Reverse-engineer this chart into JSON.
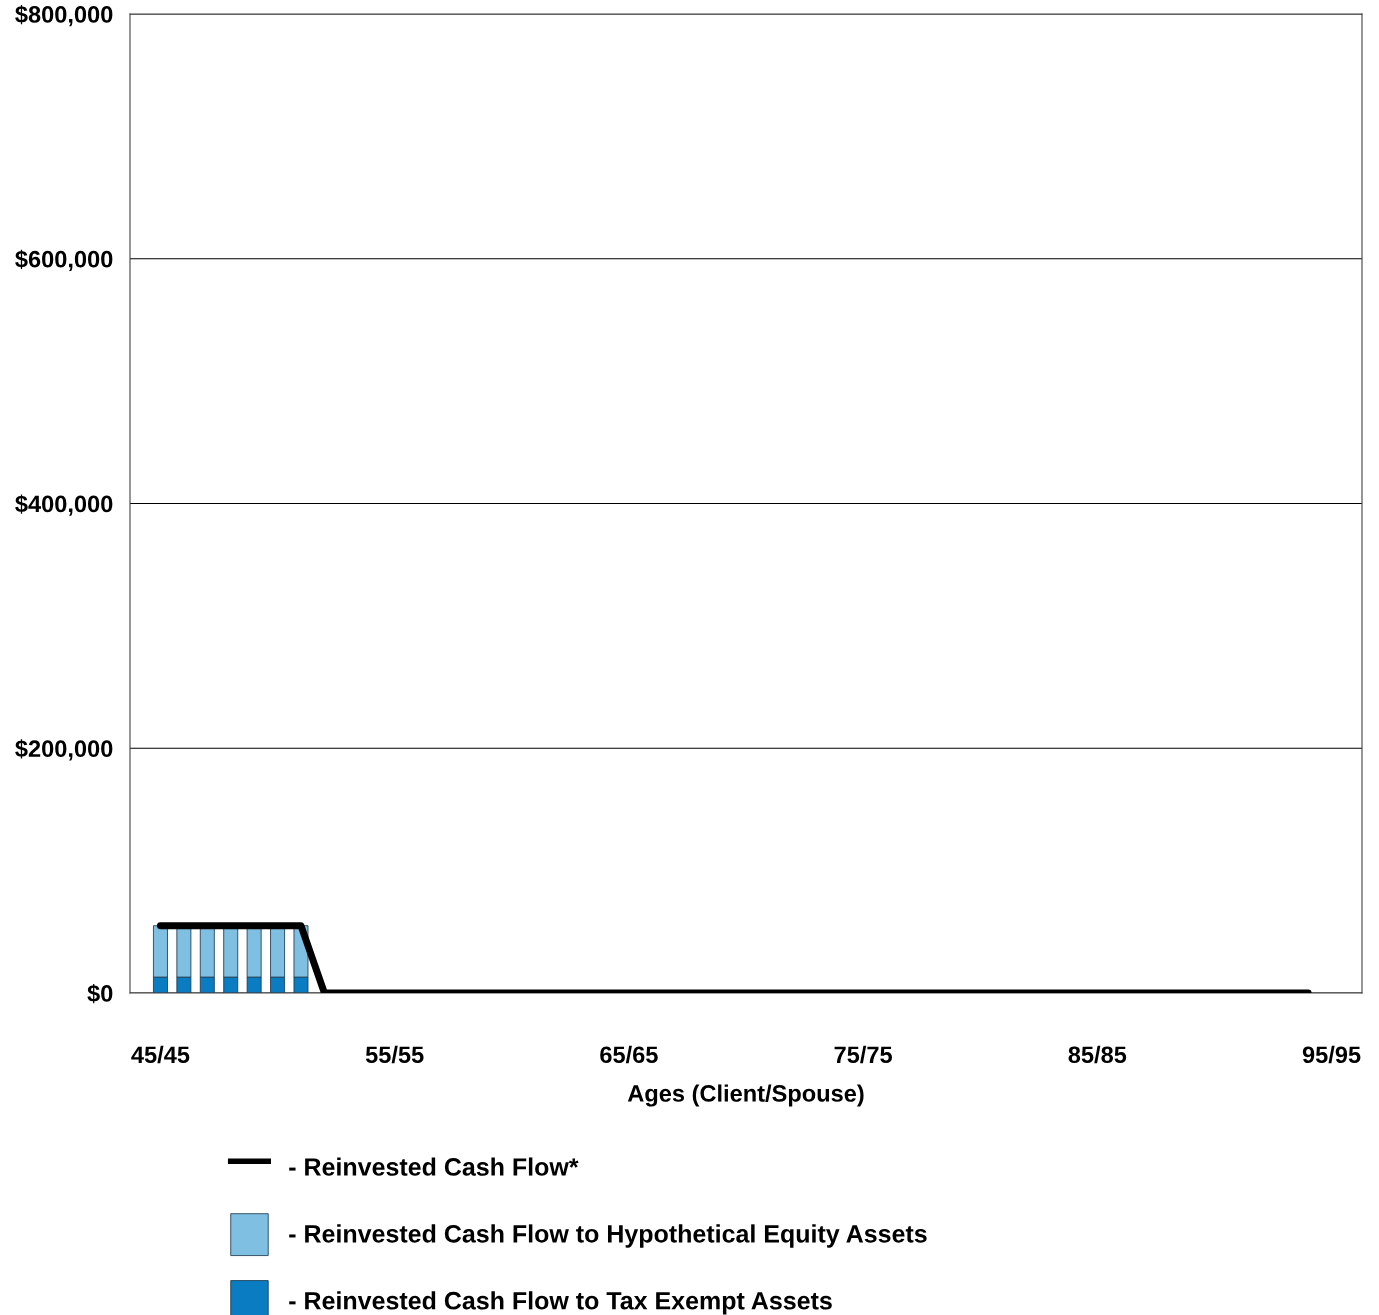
{
  "chart_data": {
    "type": "bar",
    "stacked": true,
    "xlabel": "Ages (Client/Spouse)",
    "categories": [
      "45/45",
      null,
      null,
      null,
      null,
      null,
      null,
      null,
      null,
      null,
      "55/55",
      null,
      null,
      null,
      null,
      null,
      null,
      null,
      null,
      null,
      "65/65",
      null,
      null,
      null,
      null,
      null,
      null,
      null,
      null,
      null,
      "75/75",
      null,
      null,
      null,
      null,
      null,
      null,
      null,
      null,
      null,
      "85/85",
      null,
      null,
      null,
      null,
      null,
      null,
      null,
      null,
      null,
      "95/95"
    ],
    "series": [
      {
        "name": "- Reinvested Cash Flow to Tax Exempt Assets",
        "color": "#0a7dc2",
        "values": [
          13000,
          13000,
          13000,
          13000,
          13000,
          13000,
          13000,
          null,
          null,
          null,
          null,
          null,
          null,
          null,
          null,
          null,
          null,
          null,
          null,
          null,
          null,
          null,
          null,
          null,
          null,
          null,
          null,
          null,
          null,
          null,
          null,
          null,
          null,
          null,
          null,
          null,
          null,
          null,
          null,
          null,
          null,
          null,
          null,
          null,
          null,
          null,
          null,
          null,
          null,
          null,
          null
        ]
      },
      {
        "name": "- Reinvested Cash Flow to Hypothetical Equity Assets",
        "color": "#7fbfe1",
        "values": [
          42000,
          42000,
          42000,
          42000,
          42000,
          42000,
          42000,
          null,
          null,
          null,
          null,
          null,
          null,
          null,
          null,
          null,
          null,
          null,
          null,
          null,
          null,
          null,
          null,
          null,
          null,
          null,
          null,
          null,
          null,
          null,
          null,
          null,
          null,
          null,
          null,
          null,
          null,
          null,
          null,
          null,
          null,
          null,
          null,
          null,
          null,
          null,
          null,
          null,
          null,
          null,
          null
        ]
      },
      {
        "name": "- Reinvested Cash Flow*",
        "type": "line",
        "color": "#000000",
        "values": [
          55000,
          55000,
          55000,
          55000,
          55000,
          55000,
          55000,
          0,
          0,
          0,
          0,
          0,
          0,
          0,
          0,
          0,
          0,
          0,
          0,
          0,
          0,
          0,
          0,
          0,
          0,
          0,
          0,
          0,
          0,
          0,
          0,
          0,
          0,
          0,
          0,
          0,
          0,
          0,
          0,
          0,
          0,
          0,
          0,
          0,
          0,
          0,
          0,
          0,
          0,
          0,
          null
        ]
      }
    ],
    "ylim": [
      0,
      800000
    ],
    "yticks": [
      {
        "value": 0,
        "label": "$0"
      },
      {
        "value": 200000,
        "label": "$200,000"
      },
      {
        "value": 400000,
        "label": "$400,000"
      },
      {
        "value": 600000,
        "label": "$600,000"
      },
      {
        "value": 800000,
        "label": "$800,000"
      }
    ],
    "grid": "y",
    "legend": "bottom",
    "line_style": "solid",
    "marker": "none"
  }
}
